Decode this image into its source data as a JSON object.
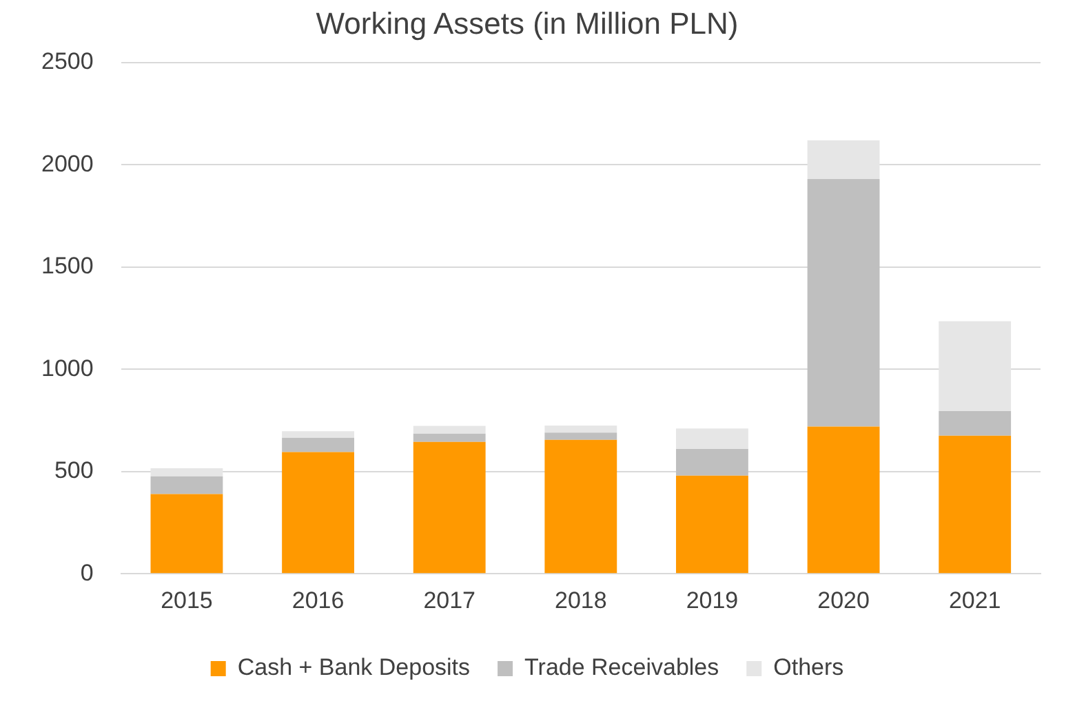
{
  "chart_data": {
    "type": "bar",
    "title": "Working Assets (in Million PLN)",
    "categories": [
      "2015",
      "2016",
      "2017",
      "2018",
      "2019",
      "2020",
      "2021"
    ],
    "stacked": true,
    "series": [
      {
        "name": "Cash + Bank Deposits",
        "color": "#ff9900",
        "values": [
          390,
          595,
          645,
          655,
          480,
          720,
          675
        ]
      },
      {
        "name": "Trade Receivables",
        "color": "#bfbfbf",
        "values": [
          86,
          70,
          40,
          35,
          130,
          1210,
          120
        ]
      },
      {
        "name": "Others",
        "color": "#e6e6e6",
        "values": [
          40,
          32,
          38,
          35,
          100,
          190,
          440
        ]
      }
    ],
    "ylim": [
      0,
      2500
    ],
    "yticks": [
      0,
      500,
      1000,
      1500,
      2000,
      2500
    ],
    "grid": "y",
    "legend": "bottom"
  }
}
